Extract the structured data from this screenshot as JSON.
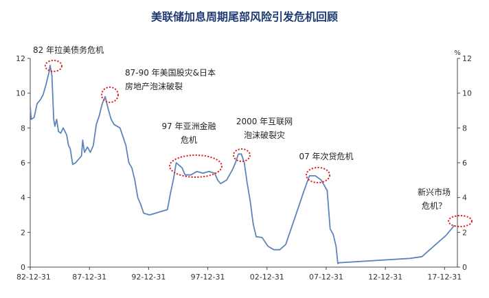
{
  "chart_data": {
    "type": "line",
    "title": "美联储加息周期尾部风险引发危机回顾",
    "unit_right": "%",
    "xlim": [
      1982.917,
      2019.0
    ],
    "ylim": [
      0,
      12
    ],
    "yticks": [
      0,
      2,
      4,
      6,
      8,
      10,
      12
    ],
    "xticks": [
      {
        "label": "82-12-31",
        "x": 1982.917
      },
      {
        "label": "87-12-31",
        "x": 1987.917
      },
      {
        "label": "92-12-31",
        "x": 1992.917
      },
      {
        "label": "97-12-31",
        "x": 1997.917
      },
      {
        "label": "02-12-31",
        "x": 2002.917
      },
      {
        "label": "07-12-31",
        "x": 2007.917
      },
      {
        "label": "12-12-31",
        "x": 2012.917
      },
      {
        "label": "17-12-31",
        "x": 2017.917
      }
    ],
    "grid": false,
    "series": [
      {
        "color": "#5b84b8",
        "points": [
          [
            1982.92,
            9.2
          ],
          [
            1983.0,
            8.5
          ],
          [
            1983.25,
            8.6
          ],
          [
            1983.5,
            9.4
          ],
          [
            1983.75,
            9.6
          ],
          [
            1984.0,
            9.9
          ],
          [
            1984.25,
            10.5
          ],
          [
            1984.5,
            11.2
          ],
          [
            1984.6,
            11.6
          ],
          [
            1984.75,
            11.0
          ],
          [
            1984.9,
            8.5
          ],
          [
            1985.0,
            8.1
          ],
          [
            1985.15,
            8.5
          ],
          [
            1985.3,
            7.8
          ],
          [
            1985.5,
            7.7
          ],
          [
            1985.7,
            8.0
          ],
          [
            1986.0,
            7.6
          ],
          [
            1986.15,
            7.0
          ],
          [
            1986.3,
            6.8
          ],
          [
            1986.5,
            5.9
          ],
          [
            1986.75,
            6.0
          ],
          [
            1987.0,
            6.2
          ],
          [
            1987.25,
            6.4
          ],
          [
            1987.35,
            7.3
          ],
          [
            1987.5,
            6.6
          ],
          [
            1987.75,
            6.9
          ],
          [
            1988.0,
            6.6
          ],
          [
            1988.25,
            7.0
          ],
          [
            1988.5,
            8.2
          ],
          [
            1988.75,
            8.7
          ],
          [
            1989.0,
            9.4
          ],
          [
            1989.25,
            9.8
          ],
          [
            1989.5,
            9.1
          ],
          [
            1989.75,
            8.5
          ],
          [
            1990.0,
            8.2
          ],
          [
            1990.5,
            8.0
          ],
          [
            1991.0,
            7.0
          ],
          [
            1991.25,
            6.0
          ],
          [
            1991.5,
            5.7
          ],
          [
            1991.75,
            5.0
          ],
          [
            1992.0,
            4.0
          ],
          [
            1992.25,
            3.6
          ],
          [
            1992.5,
            3.1
          ],
          [
            1993.0,
            3.0
          ],
          [
            1993.5,
            3.1
          ],
          [
            1994.0,
            3.2
          ],
          [
            1994.5,
            3.3
          ],
          [
            1994.75,
            4.2
          ],
          [
            1995.0,
            5.0
          ],
          [
            1995.25,
            6.0
          ],
          [
            1995.75,
            5.7
          ],
          [
            1996.0,
            5.3
          ],
          [
            1996.5,
            5.3
          ],
          [
            1997.0,
            5.5
          ],
          [
            1997.5,
            5.4
          ],
          [
            1998.0,
            5.5
          ],
          [
            1998.5,
            5.4
          ],
          [
            1998.75,
            5.0
          ],
          [
            1999.0,
            4.8
          ],
          [
            1999.5,
            5.0
          ],
          [
            1999.75,
            5.3
          ],
          [
            2000.0,
            5.6
          ],
          [
            2000.25,
            6.0
          ],
          [
            2000.5,
            6.5
          ],
          [
            2000.75,
            6.5
          ],
          [
            2001.0,
            6.0
          ],
          [
            2001.25,
            4.8
          ],
          [
            2001.5,
            3.8
          ],
          [
            2001.75,
            2.5
          ],
          [
            2002.0,
            1.75
          ],
          [
            2002.5,
            1.7
          ],
          [
            2003.0,
            1.2
          ],
          [
            2003.5,
            1.0
          ],
          [
            2004.0,
            1.0
          ],
          [
            2004.5,
            1.3
          ],
          [
            2005.0,
            2.3
          ],
          [
            2005.5,
            3.3
          ],
          [
            2006.0,
            4.3
          ],
          [
            2006.5,
            5.25
          ],
          [
            2007.0,
            5.25
          ],
          [
            2007.5,
            5.0
          ],
          [
            2008.0,
            4.4
          ],
          [
            2008.25,
            2.2
          ],
          [
            2008.5,
            1.9
          ],
          [
            2008.75,
            1.2
          ],
          [
            2008.9,
            0.2
          ],
          [
            2009.0,
            0.25
          ],
          [
            2015.0,
            0.5
          ],
          [
            2016.0,
            0.6
          ],
          [
            2016.5,
            0.9
          ],
          [
            2017.0,
            1.2
          ],
          [
            2017.5,
            1.5
          ],
          [
            2018.0,
            1.8
          ],
          [
            2018.5,
            2.2
          ],
          [
            2018.75,
            2.4
          ]
        ]
      }
    ],
    "annotations": [
      {
        "lines": [
          "82 年拉美债务危机"
        ],
        "anchor": [
          1984.6,
          11.6
        ]
      },
      {
        "lines": [
          "87-90 年美国股灾&日本",
          "房地产泡沫破裂"
        ],
        "anchor": [
          1989.3,
          9.8
        ]
      },
      {
        "lines": [
          "97 年亚洲金融",
          "危机"
        ],
        "anchor": [
          1996.5,
          5.8
        ]
      },
      {
        "lines": [
          "2000 年互联网",
          "泡沫破裂灾"
        ],
        "anchor": [
          2000.6,
          6.45
        ]
      },
      {
        "lines": [
          "07 年次贷危机"
        ],
        "anchor": [
          2007.0,
          5.2
        ]
      },
      {
        "lines": [
          "新兴市场",
          "危机？"
        ],
        "anchor": [
          2018.6,
          2.6
        ]
      }
    ]
  }
}
